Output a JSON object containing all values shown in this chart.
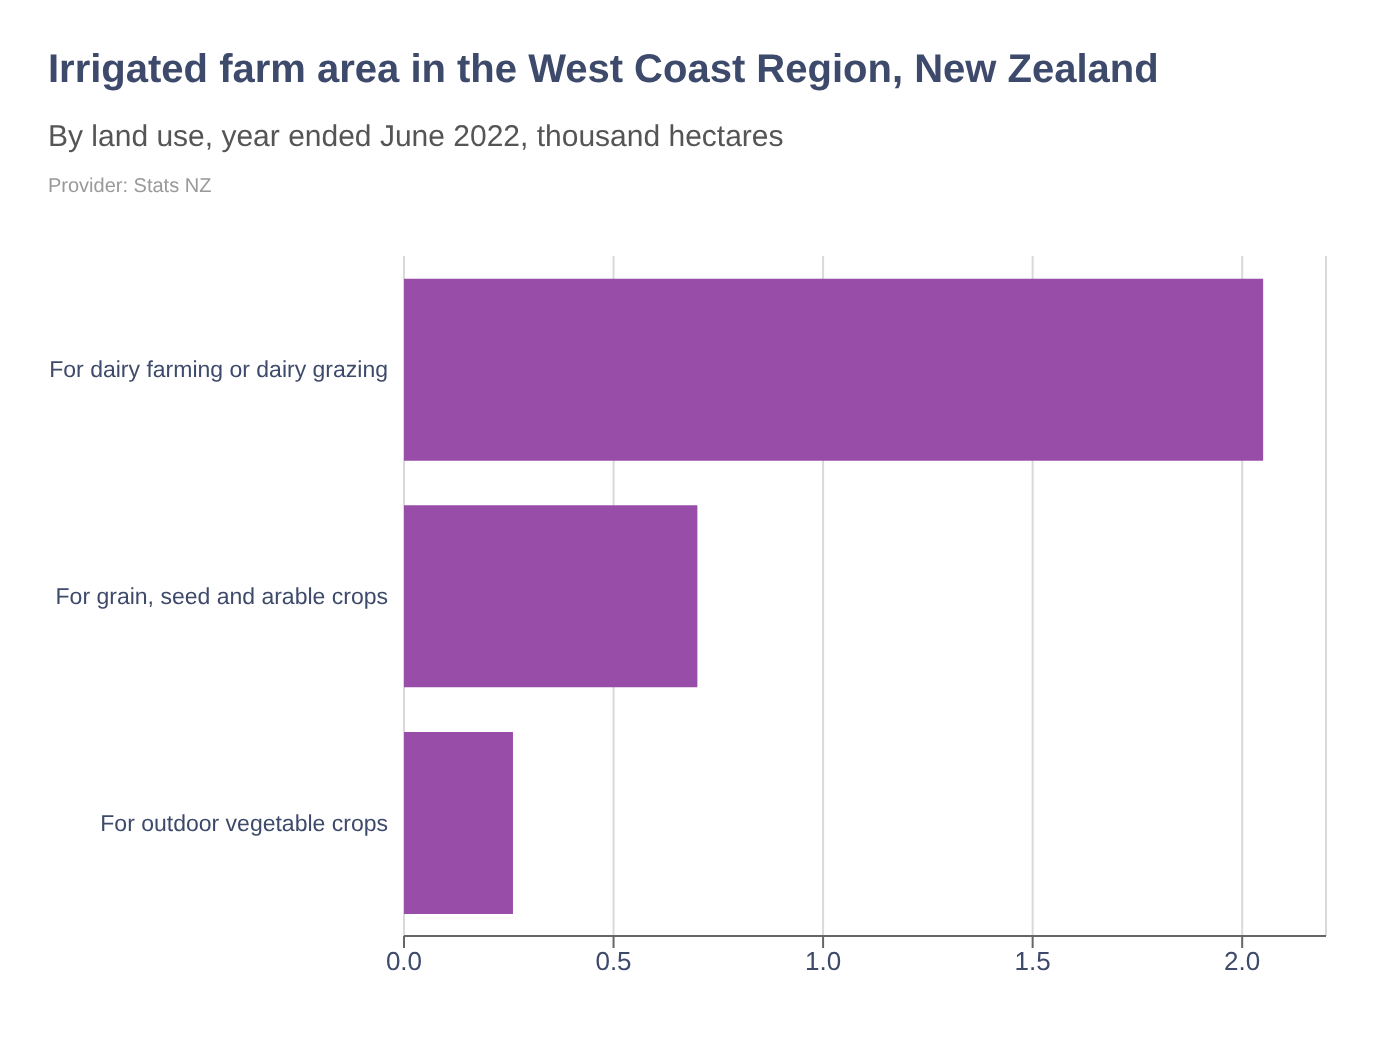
{
  "chart_data": {
    "type": "bar",
    "orientation": "horizontal",
    "title": "Irrigated farm area in the West Coast Region, New Zealand",
    "subtitle": "By land use, year ended June 2022, thousand hectares",
    "annotations": [
      "Provider: Stats NZ"
    ],
    "categories": [
      "For dairy farming or dairy grazing",
      "For grain, seed and arable crops",
      "For outdoor vegetable crops"
    ],
    "values": [
      2.05,
      0.7,
      0.26
    ],
    "color": "#984ea8",
    "xlim": [
      0,
      2.2
    ],
    "xticks": [
      {
        "value": 0,
        "label": "0.0"
      },
      0.5,
      {
        "value": 1,
        "label": "1.0"
      },
      1.5,
      {
        "value": 2,
        "label": "2.0"
      }
    ],
    "grid": "x"
  }
}
